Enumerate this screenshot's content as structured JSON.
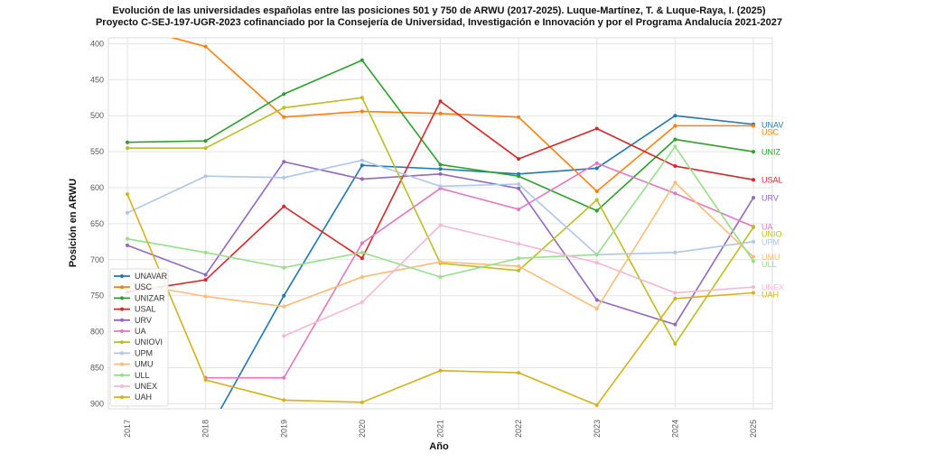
{
  "chart_data": {
    "type": "line",
    "title": "Evolución de las universidades españolas entre las posiciones 501 y 750 de ARWU (2017-2025). Luque-Martínez, T. & Luque-Raya, I. (2025)",
    "subtitle": "Proyecto C-SEJ-197-UGR-2023 cofinanciado por la Consejería de Universidad, Investigación e Innovación y por el Programa Andalucía 2021-2027",
    "xlabel": "Año",
    "ylabel": "Posición en ARWU",
    "x": [
      "2017",
      "2018",
      "2019",
      "2020",
      "2021",
      "2022",
      "2023",
      "2024",
      "2025"
    ],
    "yticks": [
      400,
      450,
      500,
      550,
      600,
      650,
      700,
      750,
      800,
      850,
      900
    ],
    "ylim": [
      392,
      907
    ],
    "y_inverted": true,
    "grid": true,
    "legend_placement": "lower-left",
    "series": [
      {
        "name": "UNAVAR",
        "end_label": "UNAV",
        "color": "#1f77b4",
        "values": [
          null,
          945,
          750,
          569,
          574,
          581,
          573,
          500,
          512
        ]
      },
      {
        "name": "USC",
        "end_label": "USC",
        "color": "#ff7f0e",
        "values": [
          375,
          404,
          502,
          494,
          497,
          502,
          605,
          514,
          514
        ]
      },
      {
        "name": "UNIZAR",
        "end_label": "UNIZ",
        "color": "#2ca02c",
        "values": [
          537,
          535,
          470,
          423,
          568,
          584,
          632,
          533,
          550
        ]
      },
      {
        "name": "USAL",
        "end_label": "USAL",
        "color": "#d62728",
        "values": [
          745,
          728,
          626,
          698,
          480,
          560,
          518,
          570,
          589
        ]
      },
      {
        "name": "URV",
        "end_label": "URV",
        "color": "#9467bd",
        "values": [
          680,
          721,
          564,
          588,
          581,
          601,
          756,
          790,
          614
        ]
      },
      {
        "name": "UA",
        "end_label": "UA",
        "color": "#e377c2",
        "values": [
          null,
          864,
          864,
          677,
          601,
          630,
          566,
          608,
          654
        ]
      },
      {
        "name": "UNIOVI",
        "end_label": "UNIO",
        "color": "#bcbd22",
        "values": [
          545,
          545,
          489,
          475,
          705,
          715,
          617,
          817,
          655
        ]
      },
      {
        "name": "UPM",
        "end_label": "UPM",
        "color": "#aec7e8",
        "values": [
          635,
          584,
          586,
          562,
          598,
          595,
          693,
          690,
          675
        ]
      },
      {
        "name": "UMU",
        "end_label": "UMU",
        "color": "#ffbb78",
        "values": [
          732,
          751,
          765,
          724,
          703,
          709,
          768,
          593,
          696
        ]
      },
      {
        "name": "ULL",
        "end_label": "ULL",
        "color": "#98df8a",
        "values": [
          671,
          690,
          711,
          690,
          724,
          698,
          693,
          543,
          702
        ]
      },
      {
        "name": "UNEX",
        "end_label": "UNEX",
        "color": "#f7b6d2",
        "values": [
          null,
          null,
          806,
          759,
          652,
          678,
          704,
          746,
          738
        ]
      },
      {
        "name": "UAH",
        "end_label": "UAH",
        "color": "#d4b21f",
        "values": [
          609,
          867,
          895,
          898,
          854,
          857,
          902,
          754,
          746
        ]
      }
    ]
  }
}
